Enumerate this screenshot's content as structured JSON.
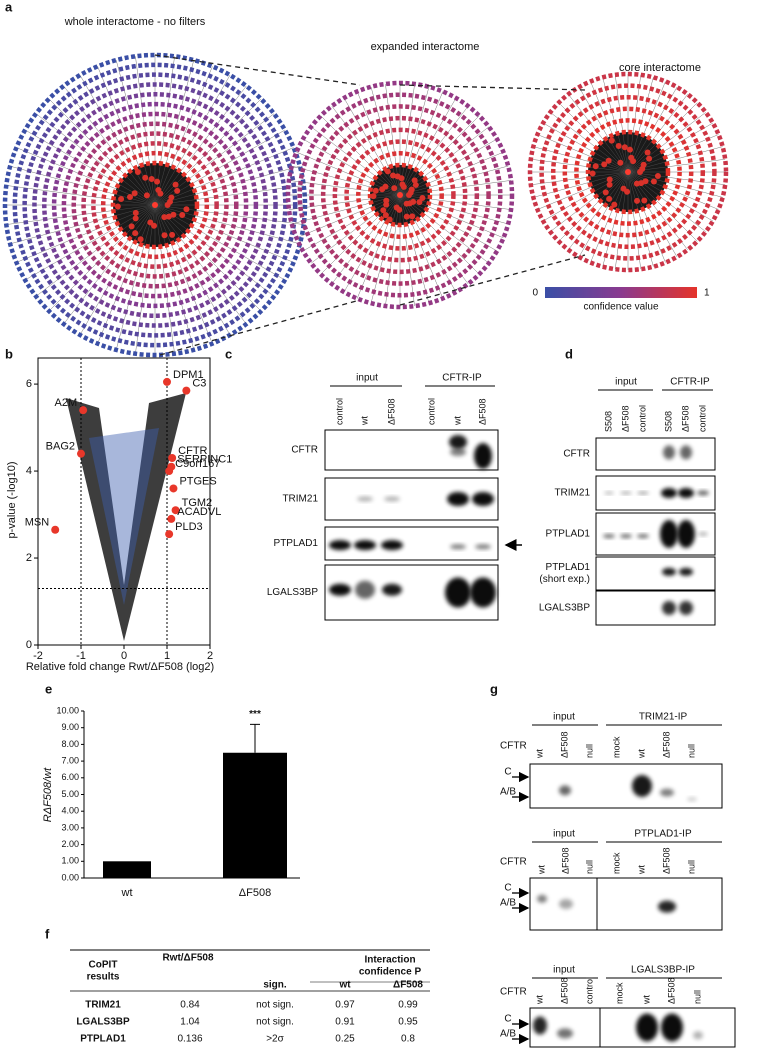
{
  "panel_labels": [
    "a",
    "b",
    "c",
    "d",
    "e",
    "f",
    "g"
  ],
  "panel_a": {
    "titles": [
      "whole interactome -  no filters",
      "expanded interactome",
      "core interactome"
    ],
    "colorbar": {
      "min": "0",
      "max": "1",
      "label": "confidence value"
    }
  },
  "chart_data": [
    {
      "type": "scatter",
      "xlabel": "Relative fold change Rwt/ΔF508 (log2)",
      "ylabel": "p-value (-log10)",
      "xlim": [
        -2,
        2
      ],
      "ylim": [
        0,
        6.6
      ],
      "xticks": [
        -2,
        -1,
        0,
        1,
        2
      ],
      "yticks": [
        0,
        2,
        4,
        6
      ],
      "threshold_x": [
        -1,
        1
      ],
      "threshold_y": 1.3,
      "color": "#e8372a",
      "labels": [
        "DPM1",
        "C3",
        "A2M",
        "BAG2",
        "CFTR",
        "SERPINC1",
        "C9orf167",
        "PTGES",
        "TGM2",
        "ACADVL",
        "PLD3",
        "MSN"
      ],
      "x": [
        1.0,
        1.45,
        -0.95,
        -1.0,
        1.12,
        1.1,
        1.05,
        1.15,
        1.2,
        1.1,
        1.05,
        -1.6
      ],
      "values": [
        6.05,
        5.85,
        5.4,
        4.4,
        4.3,
        4.1,
        4.0,
        3.6,
        3.1,
        2.9,
        2.55,
        2.65
      ]
    },
    {
      "type": "bar",
      "ylabel": "RΔF508/wt",
      "categories": [
        "wt",
        "ΔF508"
      ],
      "values": [
        1.0,
        7.5
      ],
      "errors": [
        null,
        1.7
      ],
      "annotation": "***",
      "color": "#000000",
      "ylim": [
        0,
        10
      ],
      "yticks": [
        {
          "value": 0,
          "label": "0.00"
        },
        {
          "value": 1,
          "label": "1.00"
        },
        {
          "value": 2,
          "label": "2.00"
        },
        {
          "value": 3,
          "label": "3.00"
        },
        {
          "value": 4,
          "label": "4.00"
        },
        {
          "value": 5,
          "label": "5.00"
        },
        {
          "value": 6,
          "label": "6.00"
        },
        {
          "value": 7,
          "label": "7.00"
        },
        {
          "value": 8,
          "label": "8.00"
        },
        {
          "value": 9,
          "label": "9.00"
        },
        {
          "value": 10,
          "label": "10.00"
        }
      ]
    }
  ],
  "panel_c": {
    "groups": [
      "input",
      "CFTR-IP"
    ],
    "lanes": [
      "control",
      "wt",
      "ΔF508",
      "control",
      "wt",
      "ΔF508"
    ],
    "rows": [
      "CFTR",
      "TRIM21",
      "PTPLAD1",
      "LGALS3BP"
    ]
  },
  "panel_d": {
    "groups": [
      "input",
      "CFTR-IP"
    ],
    "lanes": [
      "S508",
      "ΔF508",
      "control",
      "S508",
      "ΔF508",
      "control"
    ],
    "rows": [
      [
        "CFTR"
      ],
      [
        "TRIM21"
      ],
      [
        "PTPLAD1"
      ],
      [
        "PTPLAD1",
        "(short exp.)"
      ],
      [
        "LGALS3BP"
      ]
    ]
  },
  "panel_f": {
    "header": {
      "first": [
        "CoPIT",
        "results"
      ],
      "ratio": "Rwt/ΔF508",
      "sign": "sign.",
      "confidence": [
        "Interaction",
        "confidence P"
      ],
      "wt": "wt",
      "mutant": "ΔF508"
    },
    "rows": [
      [
        "TRIM21",
        "0.84",
        "not sign.",
        "0.97",
        "0.99"
      ],
      [
        "LGALS3BP",
        "1.04",
        "not sign.",
        "0.91",
        "0.95"
      ],
      [
        "PTPLAD1",
        "0.136",
        ">2σ",
        "0.25",
        "0.8"
      ]
    ]
  },
  "panel_g": {
    "blots": [
      {
        "groups": [
          "input",
          "TRIM21-IP"
        ],
        "sample_label": "CFTR",
        "lanes": [
          "wt",
          "ΔF508",
          "null",
          "mock",
          "wt",
          "ΔF508",
          "null"
        ],
        "bands": [
          "C",
          "A/B"
        ]
      },
      {
        "groups": [
          "input",
          "PTPLAD1-IP"
        ],
        "sample_label": "CFTR",
        "lanes": [
          "wt",
          "ΔF508",
          "null",
          "mock",
          "wt",
          "ΔF508",
          "null"
        ],
        "bands": [
          "C",
          "A/B"
        ]
      },
      {
        "groups": [
          "input",
          "LGALS3BP-IP"
        ],
        "sample_label": "CFTR",
        "lanes": [
          "wt",
          "ΔF508",
          "control",
          "mock",
          "wt",
          "ΔF508",
          "null"
        ],
        "bands": [
          "C",
          "A/B"
        ]
      }
    ]
  }
}
